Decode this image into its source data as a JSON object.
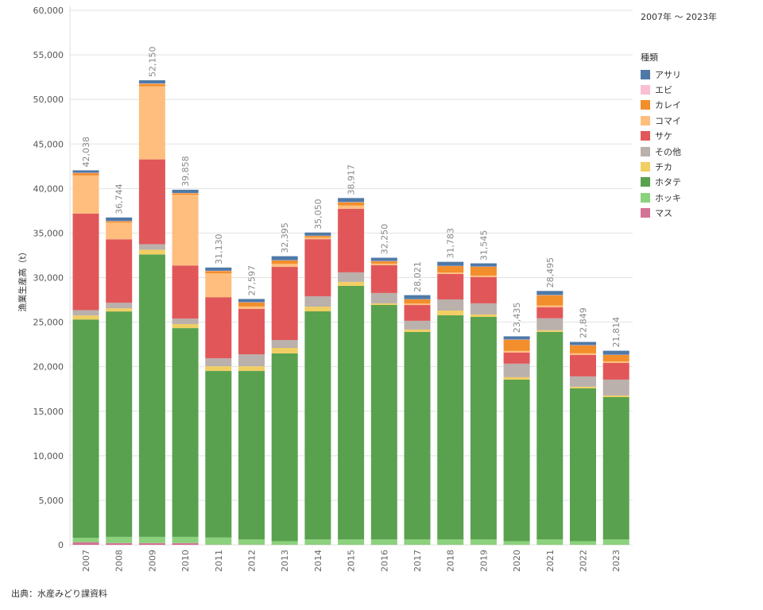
{
  "period_label": "2007年 ～ 2023年",
  "source_label": "出典：水産みどり課資料",
  "chart_data": {
    "type": "bar",
    "stacked": true,
    "title": "",
    "xlabel": "",
    "ylabel": "漁業生産高（t）",
    "ylim": [
      0,
      60000
    ],
    "yticks": [
      0,
      5000,
      10000,
      15000,
      20000,
      25000,
      30000,
      35000,
      40000,
      45000,
      50000,
      55000,
      60000
    ],
    "ytick_labels": [
      "0",
      "5,000",
      "10,000",
      "15,000",
      "20,000",
      "25,000",
      "30,000",
      "35,000",
      "40,000",
      "45,000",
      "50,000",
      "55,000",
      "60,000"
    ],
    "grid": true,
    "legend_title": "種類",
    "legend_position": "right",
    "categories": [
      "2007",
      "2008",
      "2009",
      "2010",
      "2011",
      "2012",
      "2013",
      "2014",
      "2015",
      "2016",
      "2017",
      "2018",
      "2019",
      "2020",
      "2021",
      "2022",
      "2023"
    ],
    "totals": [
      42038,
      36744,
      52150,
      39858,
      31130,
      27597,
      32395,
      35050,
      38917,
      32250,
      28021,
      31783,
      31545,
      23435,
      28495,
      22849,
      21814
    ],
    "total_labels": [
      "42,038",
      "36,744",
      "52,150",
      "39,858",
      "31,130",
      "27,597",
      "32,395",
      "35,050",
      "38,917",
      "32,250",
      "28,021",
      "31,783",
      "31,545",
      "23,435",
      "28,495",
      "22,849",
      "21,814"
    ],
    "series": [
      {
        "name": "マス",
        "color": "#d37295",
        "values": [
          300,
          200,
          200,
          200,
          20,
          20,
          10,
          10,
          10,
          10,
          10,
          10,
          10,
          10,
          10,
          10,
          10
        ]
      },
      {
        "name": "ホッキ",
        "color": "#8cd17d",
        "values": [
          500,
          700,
          700,
          700,
          800,
          600,
          400,
          600,
          600,
          600,
          600,
          600,
          600,
          400,
          600,
          400,
          600
        ]
      },
      {
        "name": "ホタテ",
        "color": "#59a14f",
        "values": [
          24500,
          25300,
          31700,
          23430,
          18700,
          18900,
          21080,
          25600,
          28460,
          26320,
          23290,
          25160,
          24980,
          18140,
          23300,
          17160,
          15980
        ]
      },
      {
        "name": "チカ",
        "color": "#f1ce63",
        "values": [
          450,
          350,
          530,
          450,
          530,
          530,
          620,
          530,
          450,
          180,
          270,
          530,
          270,
          270,
          180,
          180,
          180
        ]
      },
      {
        "name": "その他",
        "color": "#bab0ac",
        "values": [
          600,
          620,
          620,
          620,
          890,
          1340,
          890,
          1160,
          1070,
          1160,
          980,
          1250,
          1250,
          1520,
          1340,
          1160,
          1780
        ]
      },
      {
        "name": "サケ",
        "color": "#e15759",
        "values": [
          10840,
          7130,
          9520,
          5960,
          6860,
          5100,
          8200,
          6410,
          7140,
          3120,
          1770,
          2850,
          2940,
          1250,
          1250,
          2410,
          1870
        ]
      },
      {
        "name": "コマイ",
        "color": "#ffbe7d",
        "values": [
          4280,
          1870,
          8200,
          7930,
          2670,
          270,
          360,
          180,
          360,
          180,
          180,
          180,
          180,
          180,
          180,
          180,
          180
        ]
      },
      {
        "name": "カレイ",
        "color": "#f28e2b",
        "values": [
          250,
          150,
          270,
          180,
          270,
          450,
          360,
          180,
          360,
          270,
          450,
          710,
          980,
          1250,
          1160,
          890,
          710
        ]
      },
      {
        "name": "エビ",
        "color": "#fabfd2",
        "values": [
          50,
          30,
          50,
          30,
          30,
          30,
          30,
          30,
          30,
          30,
          30,
          30,
          30,
          30,
          30,
          30,
          30
        ]
      },
      {
        "name": "アサリ",
        "color": "#4e79a7",
        "values": [
          270,
          400,
          360,
          360,
          360,
          360,
          450,
          360,
          450,
          360,
          450,
          450,
          360,
          360,
          450,
          360,
          450
        ]
      }
    ]
  }
}
